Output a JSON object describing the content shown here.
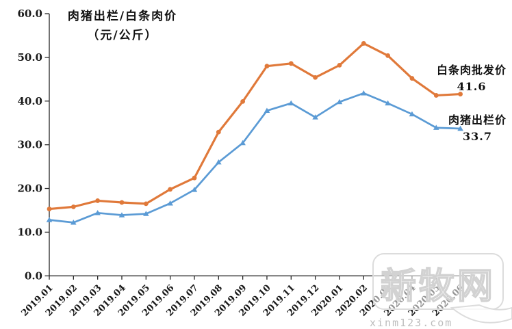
{
  "title": {
    "line1": "肉猪出栏/白条肉价",
    "line2": "（元/公斤）"
  },
  "annotations": {
    "wholesale_label": "白条肉批发价",
    "wholesale_value": "41.6",
    "live_label": "肉猪出栏价",
    "live_value": "33.7"
  },
  "watermark": {
    "brand": "新牧网",
    "site": "xinm123.com"
  },
  "colors": {
    "wholesale": "#E0793A",
    "live": "#5B9BD5",
    "axis": "#262626",
    "tick_text": "#1a1a1a",
    "watermark_outline": "#d2d2d2"
  },
  "chart_data": {
    "type": "line",
    "title": "肉猪出栏/白条肉价（元/公斤）",
    "categories": [
      "2019.01",
      "2019.02",
      "2019.03",
      "2019.04",
      "2019.05",
      "2019.06",
      "2019.07",
      "2019.08",
      "2019.09",
      "2019.10",
      "2019.11",
      "2019.12",
      "2020.01",
      "2020.02",
      "2020.03",
      "2020.04",
      "2020.05",
      "2020.06"
    ],
    "series": [
      {
        "name": "白条肉批发价",
        "marker": "circle",
        "color": "#E0793A",
        "end_label": 41.6,
        "values": [
          15.3,
          15.8,
          17.2,
          16.8,
          16.5,
          19.8,
          22.4,
          32.9,
          39.9,
          48.0,
          48.6,
          45.4,
          48.2,
          53.2,
          50.4,
          45.2,
          41.3,
          41.6
        ]
      },
      {
        "name": "肉猪出栏价",
        "marker": "triangle",
        "color": "#5B9BD5",
        "end_label": 33.7,
        "values": [
          12.8,
          12.2,
          14.4,
          13.9,
          14.2,
          16.6,
          19.7,
          26.0,
          30.4,
          37.8,
          39.5,
          36.3,
          39.8,
          41.8,
          39.5,
          37.0,
          33.9,
          33.7
        ]
      }
    ],
    "ylim": [
      0,
      60
    ],
    "ytick_step": 10,
    "ytick_labels": [
      "0.0",
      "10.0",
      "20.0",
      "30.0",
      "40.0",
      "50.0",
      "60.0"
    ],
    "grid": false,
    "legend_position": "inline-right",
    "x_label_rotation": -45
  }
}
